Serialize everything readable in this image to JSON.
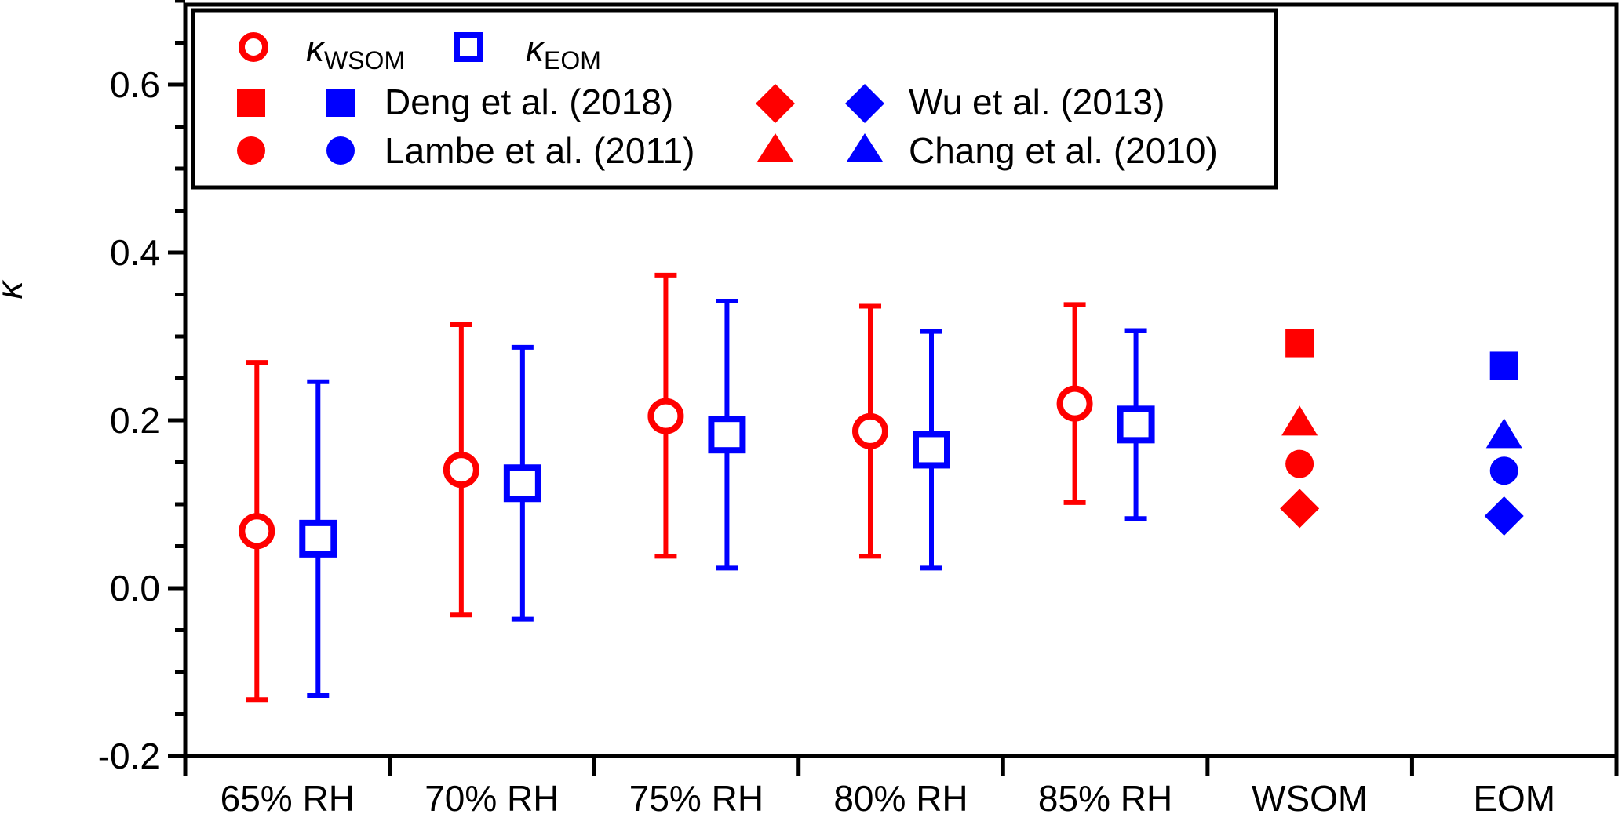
{
  "chart_data": {
    "type": "scatter",
    "ylabel": "κ",
    "ylim": [
      -0.2,
      0.7
    ],
    "y_ticks": [
      "-0.2",
      "0.0",
      "0.2",
      "0.4",
      "0.6"
    ],
    "y_tick_values": [
      -0.2,
      0.0,
      0.2,
      0.4,
      0.6
    ],
    "categories": [
      "65% RH",
      "70% RH",
      "75% RH",
      "80% RH",
      "85% RH",
      "WSOM",
      "EOM"
    ],
    "colors": {
      "wsom": "#ff0000",
      "eom": "#0000ff"
    },
    "series": [
      {
        "name": "κWSOM",
        "label_main": "κ",
        "label_sub": "WSOM",
        "marker": "open-circle",
        "color": "#ff0000",
        "points": [
          {
            "category": "65% RH",
            "y": 0.068,
            "low": -0.133,
            "high": 0.269
          },
          {
            "category": "70% RH",
            "y": 0.141,
            "low": -0.032,
            "high": 0.314
          },
          {
            "category": "75% RH",
            "y": 0.205,
            "low": 0.038,
            "high": 0.373
          },
          {
            "category": "80% RH",
            "y": 0.187,
            "low": 0.038,
            "high": 0.336
          },
          {
            "category": "85% RH",
            "y": 0.22,
            "low": 0.102,
            "high": 0.338
          }
        ]
      },
      {
        "name": "κEOM",
        "label_main": "κ",
        "label_sub": "EOM",
        "marker": "open-square",
        "color": "#0000ff",
        "points": [
          {
            "category": "65% RH",
            "y": 0.059,
            "low": -0.128,
            "high": 0.246
          },
          {
            "category": "70% RH",
            "y": 0.125,
            "low": -0.037,
            "high": 0.287
          },
          {
            "category": "75% RH",
            "y": 0.183,
            "low": 0.024,
            "high": 0.342
          },
          {
            "category": "80% RH",
            "y": 0.165,
            "low": 0.024,
            "high": 0.306
          },
          {
            "category": "85% RH",
            "y": 0.195,
            "low": 0.083,
            "high": 0.307
          }
        ]
      }
    ],
    "literature": [
      {
        "name": "Deng et al. (2018)",
        "marker": "square",
        "wsom": 0.292,
        "eom": 0.265
      },
      {
        "name": "Lambe et al. (2011)",
        "marker": "circle",
        "wsom": 0.148,
        "eom": 0.14
      },
      {
        "name": "Wu et al. (2013)",
        "marker": "diamond",
        "wsom": 0.095,
        "eom": 0.086
      },
      {
        "name": "Chang et al. (2010)",
        "marker": "triangle",
        "wsom": 0.195,
        "eom": 0.18
      }
    ],
    "legend_placement": "top-left",
    "grid": false
  }
}
